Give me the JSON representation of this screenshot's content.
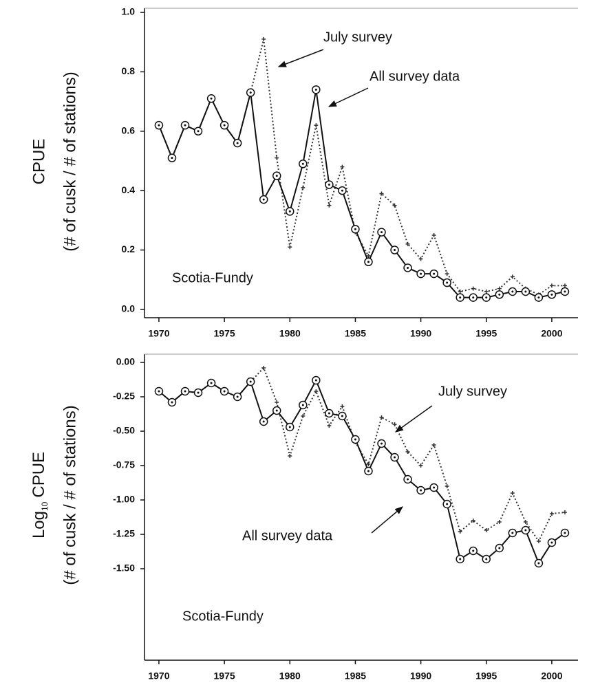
{
  "chart_data": [
    {
      "type": "line",
      "ylabel": [
        "CPUE",
        "(# of cusk / # of stations)"
      ],
      "x": [
        1970,
        1971,
        1972,
        1973,
        1974,
        1975,
        1976,
        1977,
        1978,
        1979,
        1980,
        1981,
        1982,
        1983,
        1984,
        1985,
        1986,
        1987,
        1988,
        1989,
        1990,
        1991,
        1992,
        1993,
        1994,
        1995,
        1996,
        1997,
        1998,
        1999,
        2000,
        2001
      ],
      "series": [
        {
          "name": "July survey",
          "color": "#333333",
          "values": [
            0.62,
            0.51,
            0.62,
            0.6,
            0.71,
            0.62,
            0.56,
            0.73,
            0.91,
            0.51,
            0.21,
            0.41,
            0.62,
            0.35,
            0.48,
            0.26,
            0.18,
            0.39,
            0.35,
            0.22,
            0.17,
            0.25,
            0.12,
            0.06,
            0.07,
            0.06,
            0.07,
            0.11,
            0.07,
            0.05,
            0.08,
            0.08
          ]
        },
        {
          "name": "All survey data",
          "color": "#111111",
          "values": [
            0.62,
            0.51,
            0.62,
            0.6,
            0.71,
            0.62,
            0.56,
            0.73,
            0.37,
            0.45,
            0.33,
            0.49,
            0.74,
            0.42,
            0.4,
            0.27,
            0.16,
            0.26,
            0.2,
            0.14,
            0.12,
            0.12,
            0.09,
            0.04,
            0.04,
            0.04,
            0.05,
            0.06,
            0.06,
            0.04,
            0.05,
            0.06
          ]
        }
      ],
      "annotations": [
        "July survey",
        "All survey data",
        "Scotia-Fundy"
      ],
      "xlim": [
        1968.9,
        2002
      ],
      "xticks": [
        1970,
        1975,
        1980,
        1985,
        1990,
        1995,
        2000
      ],
      "ylim": [
        -0.028,
        1.014
      ],
      "yticks": [
        {
          "value": 0,
          "label": "0.0"
        },
        0.2,
        0.4,
        0.6,
        0.8,
        {
          "value": 1,
          "label": "1.0"
        }
      ]
    },
    {
      "type": "line",
      "ylabel": [
        [
          "Log",
          "10",
          "CPUE"
        ],
        "(# of cusk / # of stations)"
      ],
      "x": [
        1970,
        1971,
        1972,
        1973,
        1974,
        1975,
        1976,
        1977,
        1978,
        1979,
        1980,
        1981,
        1982,
        1983,
        1984,
        1985,
        1986,
        1987,
        1988,
        1989,
        1990,
        1991,
        1992,
        1993,
        1994,
        1995,
        1996,
        1997,
        1998,
        1999,
        2000,
        2001
      ],
      "series": [
        {
          "name": "July survey",
          "color": "#333333",
          "values": [
            -0.21,
            -0.29,
            -0.21,
            -0.22,
            -0.15,
            -0.21,
            -0.25,
            -0.14,
            -0.04,
            -0.29,
            -0.68,
            -0.39,
            -0.21,
            -0.46,
            -0.32,
            -0.58,
            -0.74,
            -0.4,
            -0.45,
            -0.65,
            -0.75,
            -0.6,
            -0.9,
            -1.23,
            -1.15,
            -1.22,
            -1.16,
            -0.95,
            -1.16,
            -1.3,
            -1.1,
            -1.09
          ]
        },
        {
          "name": "All survey data",
          "color": "#111111",
          "values": [
            -0.21,
            -0.29,
            -0.21,
            -0.22,
            -0.15,
            -0.21,
            -0.25,
            -0.14,
            -0.43,
            -0.35,
            -0.47,
            -0.31,
            -0.13,
            -0.37,
            -0.39,
            -0.56,
            -0.79,
            -0.59,
            -0.69,
            -0.85,
            -0.93,
            -0.91,
            -1.03,
            -1.43,
            -1.37,
            -1.43,
            -1.35,
            -1.24,
            -1.22,
            -1.46,
            -1.31,
            -1.24
          ]
        }
      ],
      "annotations": [
        "July survey",
        "All survey data",
        "Scotia-Fundy"
      ],
      "xlim": [
        1968.9,
        2002
      ],
      "xticks": [
        1970,
        1975,
        1980,
        1985,
        1990,
        1995,
        2000
      ],
      "ylim": [
        -2.165,
        0.06
      ],
      "yticks": [
        {
          "value": 0,
          "label": "0.00"
        },
        {
          "value": -0.25,
          "label": "-0.25"
        },
        {
          "value": -0.5,
          "label": "-0.50"
        },
        {
          "value": -0.75,
          "label": "-0.75"
        },
        {
          "value": -1,
          "label": "-1.00"
        },
        {
          "value": -1.25,
          "label": "-1.25"
        },
        {
          "value": -1.5,
          "label": "-1.50"
        }
      ]
    }
  ]
}
